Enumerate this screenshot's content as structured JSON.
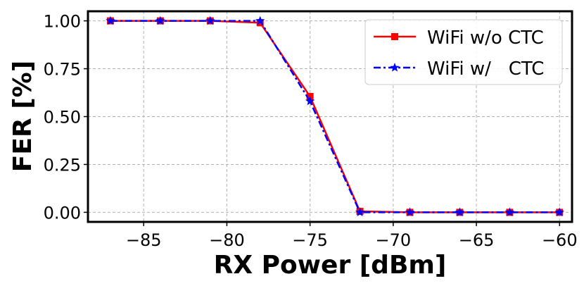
{
  "chart_data": {
    "type": "line",
    "xlabel": "RX Power [dBm]",
    "ylabel": "FER [%]",
    "xlim": [
      -88.35,
      -59.25
    ],
    "ylim": [
      -0.05,
      1.05
    ],
    "xticks": [
      -85,
      -80,
      -75,
      -70,
      -65,
      -60
    ],
    "xtick_labels": [
      "−85",
      "−80",
      "−75",
      "−70",
      "−65",
      "−60"
    ],
    "yticks": [
      0.0,
      0.25,
      0.5,
      0.75,
      1.0
    ],
    "ytick_labels": [
      "0.00",
      "0.25",
      "0.50",
      "0.75",
      "1.00"
    ],
    "grid": true,
    "legend_position": "top-right",
    "x": [
      -87,
      -84,
      -81,
      -78,
      -75,
      -72,
      -69,
      -66,
      -63,
      -60
    ],
    "series": [
      {
        "name": "WiFi w/o CTC",
        "color": "#ff0000",
        "marker": "square",
        "linestyle": "solid",
        "values": [
          1.0,
          1.0,
          1.0,
          0.99,
          0.605,
          0.005,
          0.0,
          0.0,
          0.0,
          0.0
        ]
      },
      {
        "name": "WiFi w/   CTC",
        "color": "#0000ff",
        "marker": "star",
        "linestyle": "dashdot",
        "values": [
          1.0,
          1.0,
          1.0,
          1.0,
          0.58,
          0.0,
          0.0,
          0.0,
          0.0,
          0.0
        ]
      }
    ]
  }
}
